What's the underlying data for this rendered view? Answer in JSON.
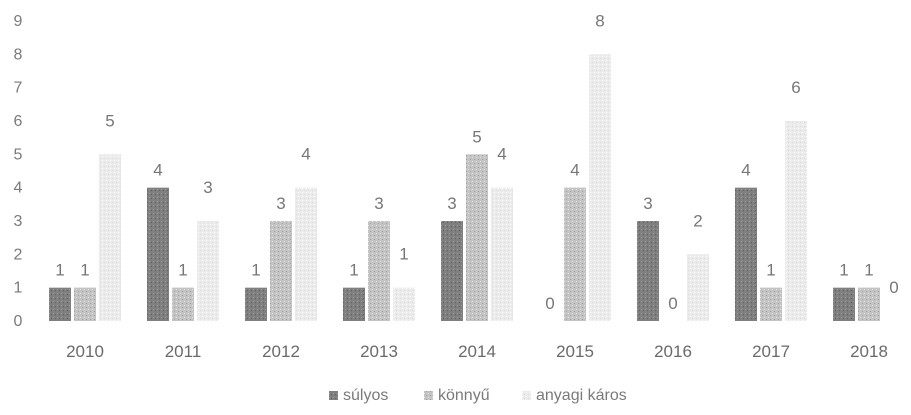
{
  "chart_data": {
    "type": "bar",
    "categories": [
      "2010",
      "2011",
      "2012",
      "2013",
      "2014",
      "2015",
      "2016",
      "2017",
      "2018"
    ],
    "series": [
      {
        "name": "súlyos",
        "values": [
          1,
          4,
          1,
          1,
          3,
          0,
          3,
          4,
          1
        ],
        "color": "#7f7f7f"
      },
      {
        "name": "könnyű",
        "values": [
          1,
          1,
          3,
          3,
          5,
          4,
          0,
          1,
          1
        ],
        "color": "#bdbdbd"
      },
      {
        "name": "anyagi káros",
        "values": [
          5,
          3,
          4,
          1,
          4,
          8,
          2,
          6,
          0
        ],
        "color": "#e9e9e9"
      }
    ],
    "ylim": [
      0,
      9
    ],
    "yticks": [
      "0",
      "1",
      "2",
      "3",
      "4",
      "5",
      "6",
      "7",
      "8",
      "9"
    ],
    "grid": false,
    "legend": "bottom",
    "title": "",
    "xlabel": "",
    "ylabel": ""
  }
}
